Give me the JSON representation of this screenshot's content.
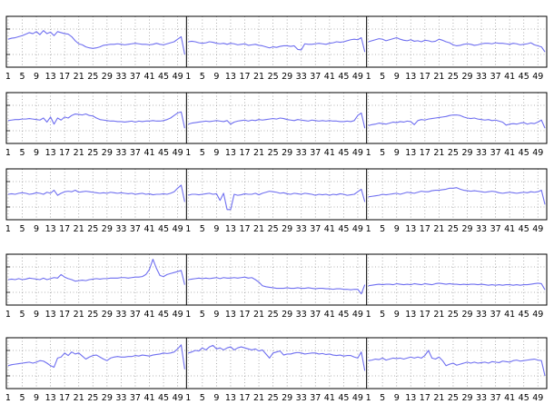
{
  "chart_data": {
    "type": "line",
    "layout": {
      "rows": 5,
      "panels_per_row": 3
    },
    "x_tick_labels": [
      "1",
      "5",
      "9",
      "13",
      "17",
      "21",
      "25",
      "29",
      "33",
      "37",
      "41",
      "45",
      "49"
    ],
    "colors": {
      "series": "#6f6ff0",
      "frame": "#000000",
      "grid": "#9a9a9a",
      "background": "#ffffff"
    },
    "grid": true,
    "ylim": [
      0,
      1
    ],
    "rows": [
      [
        [
          0.55,
          0.57,
          0.58,
          0.6,
          0.62,
          0.65,
          0.68,
          0.66,
          0.7,
          0.64,
          0.72,
          0.66,
          0.69,
          0.62,
          0.7,
          0.68,
          0.66,
          0.65,
          0.6,
          0.52,
          0.46,
          0.44,
          0.4,
          0.38,
          0.37,
          0.38,
          0.4,
          0.43,
          0.44,
          0.45,
          0.45,
          0.46,
          0.45,
          0.44,
          0.45,
          0.46,
          0.47,
          0.46,
          0.45,
          0.45,
          0.44,
          0.45,
          0.47,
          0.45,
          0.44,
          0.46,
          0.48,
          0.5,
          0.55,
          0.6,
          0.25
        ],
        [
          0.5,
          0.51,
          0.5,
          0.48,
          0.47,
          0.48,
          0.5,
          0.49,
          0.47,
          0.46,
          0.47,
          0.45,
          0.47,
          0.46,
          0.44,
          0.45,
          0.46,
          0.43,
          0.44,
          0.45,
          0.43,
          0.42,
          0.4,
          0.38,
          0.4,
          0.39,
          0.41,
          0.42,
          0.42,
          0.41,
          0.42,
          0.35,
          0.34,
          0.46,
          0.45,
          0.45,
          0.46,
          0.47,
          0.46,
          0.45,
          0.47,
          0.48,
          0.5,
          0.49,
          0.5,
          0.52,
          0.54,
          0.55,
          0.54,
          0.58,
          0.3
        ],
        [
          0.5,
          0.52,
          0.54,
          0.56,
          0.55,
          0.52,
          0.54,
          0.56,
          0.58,
          0.55,
          0.53,
          0.52,
          0.54,
          0.51,
          0.52,
          0.5,
          0.53,
          0.52,
          0.5,
          0.51,
          0.55,
          0.53,
          0.5,
          0.48,
          0.44,
          0.42,
          0.43,
          0.45,
          0.46,
          0.45,
          0.43,
          0.44,
          0.46,
          0.47,
          0.47,
          0.46,
          0.48,
          0.47,
          0.47,
          0.46,
          0.45,
          0.47,
          0.46,
          0.44,
          0.45,
          0.46,
          0.48,
          0.44,
          0.42,
          0.4,
          0.3
        ]
      ],
      [
        [
          0.45,
          0.46,
          0.47,
          0.47,
          0.48,
          0.48,
          0.49,
          0.48,
          0.47,
          0.46,
          0.5,
          0.42,
          0.52,
          0.38,
          0.5,
          0.46,
          0.52,
          0.5,
          0.55,
          0.58,
          0.57,
          0.56,
          0.58,
          0.55,
          0.54,
          0.5,
          0.47,
          0.46,
          0.45,
          0.44,
          0.44,
          0.43,
          0.43,
          0.42,
          0.43,
          0.44,
          0.42,
          0.44,
          0.43,
          0.44,
          0.44,
          0.45,
          0.44,
          0.44,
          0.45,
          0.47,
          0.5,
          0.55,
          0.6,
          0.62,
          0.3
        ],
        [
          0.38,
          0.4,
          0.41,
          0.42,
          0.43,
          0.44,
          0.43,
          0.44,
          0.45,
          0.44,
          0.43,
          0.45,
          0.38,
          0.42,
          0.44,
          0.45,
          0.46,
          0.44,
          0.46,
          0.45,
          0.47,
          0.46,
          0.47,
          0.48,
          0.49,
          0.48,
          0.5,
          0.49,
          0.47,
          0.46,
          0.45,
          0.47,
          0.46,
          0.45,
          0.44,
          0.46,
          0.45,
          0.44,
          0.45,
          0.44,
          0.45,
          0.44,
          0.44,
          0.43,
          0.43,
          0.44,
          0.43,
          0.45,
          0.55,
          0.6,
          0.3
        ],
        [
          0.35,
          0.37,
          0.38,
          0.4,
          0.39,
          0.38,
          0.4,
          0.42,
          0.41,
          0.43,
          0.42,
          0.44,
          0.43,
          0.37,
          0.45,
          0.47,
          0.46,
          0.48,
          0.49,
          0.5,
          0.51,
          0.52,
          0.53,
          0.55,
          0.56,
          0.56,
          0.55,
          0.52,
          0.5,
          0.49,
          0.5,
          0.48,
          0.47,
          0.46,
          0.47,
          0.45,
          0.46,
          0.44,
          0.42,
          0.36,
          0.38,
          0.39,
          0.38,
          0.4,
          0.41,
          0.38,
          0.4,
          0.39,
          0.42,
          0.46,
          0.3
        ]
      ],
      [
        [
          0.5,
          0.51,
          0.5,
          0.52,
          0.53,
          0.52,
          0.5,
          0.51,
          0.53,
          0.52,
          0.5,
          0.54,
          0.52,
          0.58,
          0.48,
          0.52,
          0.55,
          0.56,
          0.55,
          0.58,
          0.54,
          0.55,
          0.56,
          0.55,
          0.54,
          0.53,
          0.52,
          0.53,
          0.52,
          0.54,
          0.53,
          0.52,
          0.53,
          0.52,
          0.51,
          0.52,
          0.5,
          0.51,
          0.52,
          0.5,
          0.51,
          0.49,
          0.5,
          0.5,
          0.51,
          0.5,
          0.52,
          0.55,
          0.62,
          0.68,
          0.35
        ],
        [
          0.48,
          0.5,
          0.5,
          0.49,
          0.5,
          0.51,
          0.52,
          0.5,
          0.51,
          0.38,
          0.52,
          0.2,
          0.2,
          0.5,
          0.48,
          0.49,
          0.51,
          0.5,
          0.5,
          0.52,
          0.49,
          0.52,
          0.54,
          0.56,
          0.55,
          0.54,
          0.52,
          0.53,
          0.51,
          0.5,
          0.52,
          0.51,
          0.5,
          0.52,
          0.51,
          0.5,
          0.48,
          0.5,
          0.49,
          0.5,
          0.48,
          0.5,
          0.49,
          0.51,
          0.5,
          0.48,
          0.49,
          0.5,
          0.55,
          0.6,
          0.35
        ],
        [
          0.45,
          0.46,
          0.47,
          0.48,
          0.5,
          0.49,
          0.5,
          0.51,
          0.52,
          0.5,
          0.52,
          0.54,
          0.53,
          0.52,
          0.54,
          0.56,
          0.55,
          0.55,
          0.57,
          0.58,
          0.58,
          0.59,
          0.6,
          0.62,
          0.62,
          0.63,
          0.6,
          0.58,
          0.57,
          0.56,
          0.57,
          0.56,
          0.55,
          0.54,
          0.55,
          0.56,
          0.55,
          0.53,
          0.52,
          0.53,
          0.54,
          0.53,
          0.52,
          0.53,
          0.54,
          0.53,
          0.55,
          0.54,
          0.55,
          0.58,
          0.3
        ]
      ],
      [
        [
          0.5,
          0.51,
          0.5,
          0.52,
          0.5,
          0.51,
          0.53,
          0.52,
          0.51,
          0.5,
          0.53,
          0.5,
          0.52,
          0.54,
          0.53,
          0.6,
          0.55,
          0.52,
          0.5,
          0.47,
          0.48,
          0.49,
          0.48,
          0.5,
          0.51,
          0.52,
          0.51,
          0.52,
          0.52,
          0.53,
          0.53,
          0.53,
          0.54,
          0.54,
          0.53,
          0.54,
          0.55,
          0.55,
          0.56,
          0.6,
          0.7,
          0.9,
          0.72,
          0.58,
          0.56,
          0.6,
          0.62,
          0.64,
          0.66,
          0.68,
          0.4
        ],
        [
          0.5,
          0.51,
          0.52,
          0.53,
          0.52,
          0.53,
          0.52,
          0.53,
          0.54,
          0.52,
          0.54,
          0.53,
          0.53,
          0.54,
          0.53,
          0.54,
          0.55,
          0.53,
          0.54,
          0.5,
          0.45,
          0.38,
          0.36,
          0.35,
          0.34,
          0.33,
          0.33,
          0.33,
          0.34,
          0.33,
          0.33,
          0.34,
          0.33,
          0.33,
          0.34,
          0.33,
          0.32,
          0.33,
          0.33,
          0.32,
          0.32,
          0.31,
          0.32,
          0.32,
          0.31,
          0.31,
          0.3,
          0.31,
          0.31,
          0.22,
          0.4
        ],
        [
          0.38,
          0.39,
          0.4,
          0.41,
          0.4,
          0.41,
          0.41,
          0.4,
          0.42,
          0.41,
          0.4,
          0.41,
          0.4,
          0.42,
          0.41,
          0.4,
          0.42,
          0.41,
          0.4,
          0.42,
          0.43,
          0.42,
          0.41,
          0.42,
          0.41,
          0.41,
          0.4,
          0.41,
          0.4,
          0.41,
          0.41,
          0.4,
          0.41,
          0.4,
          0.39,
          0.4,
          0.39,
          0.4,
          0.39,
          0.4,
          0.4,
          0.39,
          0.4,
          0.39,
          0.4,
          0.4,
          0.41,
          0.42,
          0.43,
          0.42,
          0.3
        ]
      ],
      [
        [
          0.45,
          0.47,
          0.48,
          0.49,
          0.5,
          0.51,
          0.52,
          0.5,
          0.52,
          0.55,
          0.54,
          0.5,
          0.45,
          0.42,
          0.6,
          0.62,
          0.7,
          0.65,
          0.72,
          0.68,
          0.7,
          0.64,
          0.58,
          0.62,
          0.65,
          0.66,
          0.62,
          0.58,
          0.55,
          0.6,
          0.62,
          0.63,
          0.62,
          0.62,
          0.63,
          0.63,
          0.65,
          0.64,
          0.66,
          0.65,
          0.64,
          0.66,
          0.67,
          0.68,
          0.7,
          0.69,
          0.7,
          0.72,
          0.78,
          0.86,
          0.38
        ],
        [
          0.7,
          0.72,
          0.75,
          0.74,
          0.8,
          0.76,
          0.82,
          0.85,
          0.78,
          0.8,
          0.76,
          0.8,
          0.82,
          0.76,
          0.8,
          0.82,
          0.8,
          0.78,
          0.76,
          0.78,
          0.74,
          0.76,
          0.68,
          0.6,
          0.7,
          0.72,
          0.74,
          0.66,
          0.68,
          0.68,
          0.7,
          0.71,
          0.7,
          0.68,
          0.69,
          0.7,
          0.7,
          0.68,
          0.69,
          0.67,
          0.68,
          0.66,
          0.65,
          0.66,
          0.64,
          0.65,
          0.65,
          0.62,
          0.6,
          0.72,
          0.35
        ],
        [
          0.55,
          0.56,
          0.58,
          0.57,
          0.6,
          0.56,
          0.58,
          0.6,
          0.59,
          0.6,
          0.58,
          0.6,
          0.62,
          0.6,
          0.62,
          0.6,
          0.65,
          0.75,
          0.6,
          0.58,
          0.62,
          0.55,
          0.45,
          0.48,
          0.5,
          0.46,
          0.48,
          0.5,
          0.52,
          0.5,
          0.52,
          0.5,
          0.51,
          0.52,
          0.5,
          0.53,
          0.52,
          0.51,
          0.54,
          0.53,
          0.52,
          0.55,
          0.56,
          0.54,
          0.55,
          0.56,
          0.57,
          0.58,
          0.56,
          0.55,
          0.25
        ]
      ]
    ]
  }
}
